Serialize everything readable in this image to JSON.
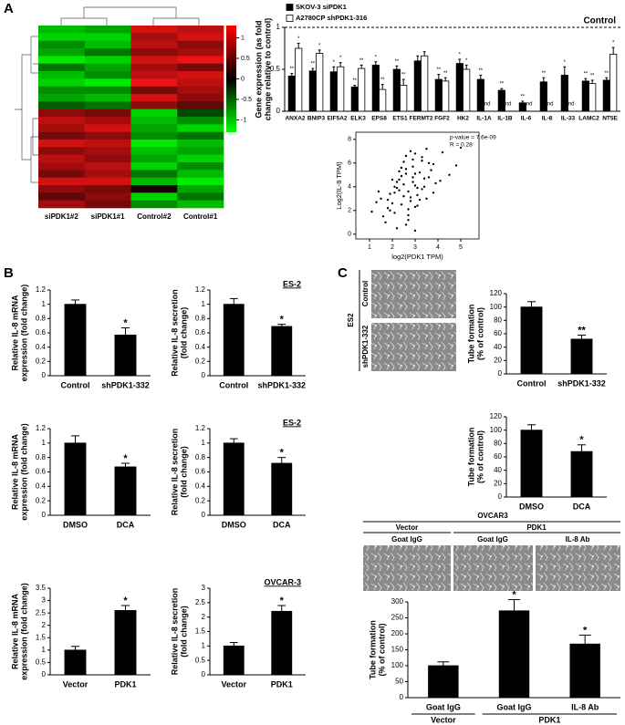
{
  "panel_labels": [
    "A",
    "B",
    "C"
  ],
  "photos": {
    "es2": {
      "group": "ES2",
      "rows": [
        "Control",
        "shPDK1-332"
      ]
    },
    "ovcar3": {
      "title": "OVCAR3",
      "groups": [
        "Vector",
        "PDK1"
      ],
      "columns": [
        "Goat IgG",
        "Goat IgG",
        "IL-8 Ab"
      ]
    }
  },
  "chart_data": [
    {
      "type": "heatmap",
      "columns": [
        "siPDK1#2",
        "siPDK1#1",
        "Control#2",
        "Control#1"
      ],
      "values": [
        [
          -0.8,
          -0.7,
          0.9,
          0.8
        ],
        [
          -0.9,
          -0.9,
          0.7,
          0.9
        ],
        [
          -0.6,
          -0.8,
          0.8,
          0.6
        ],
        [
          -0.7,
          -0.5,
          0.6,
          0.7
        ],
        [
          -1,
          -0.9,
          0.9,
          1
        ],
        [
          -0.5,
          -0.7,
          0.7,
          0.5
        ],
        [
          -0.8,
          -0.6,
          0.8,
          0.9
        ],
        [
          -0.9,
          -1,
          1,
          0.8
        ],
        [
          -0.6,
          -0.6,
          0.5,
          0.7
        ],
        [
          -0.7,
          -0.8,
          0.9,
          0.6
        ],
        [
          -0.4,
          -0.5,
          0.6,
          0.4
        ],
        [
          0.6,
          0.5,
          -0.9,
          -0.3
        ],
        [
          0.8,
          0.7,
          -0.8,
          -0.6
        ],
        [
          0.7,
          0.9,
          -0.7,
          -0.9
        ],
        [
          0.5,
          0.6,
          -0.6,
          -0.5
        ],
        [
          0.9,
          0.8,
          -1,
          -0.8
        ],
        [
          0.6,
          0.7,
          -0.8,
          -0.7
        ],
        [
          0.8,
          0.6,
          -0.7,
          -0.9
        ],
        [
          0.7,
          0.8,
          -0.9,
          -0.6
        ],
        [
          0.5,
          0.7,
          -0.5,
          -0.8
        ],
        [
          0.9,
          0.9,
          -0.8,
          -1
        ],
        [
          0.6,
          0.5,
          0.1,
          -0.7
        ],
        [
          0.4,
          0.6,
          -0.9,
          -0.5
        ],
        [
          0.7,
          0.5,
          -0.6,
          -0.8
        ]
      ],
      "zlim": [
        -1.3,
        1.3
      ],
      "zticks": [
        1,
        0.5,
        0,
        -0.5,
        -1
      ]
    },
    {
      "type": "bar",
      "ylabel": [
        "Gene expression (as fold",
        "change relative to control)"
      ],
      "categories": [
        "ANXA2",
        "BNIP3",
        "EIF5A2",
        "ELK3",
        "EPS8",
        "ETS1",
        "FERMT2",
        "FGF2",
        "HK2",
        "IL-1A",
        "IL-1B",
        "IL-6",
        "IL-8",
        "IL-33",
        "LAMC2",
        "NT5E"
      ],
      "series": [
        {
          "name": "SKOV-3 siPDK1",
          "color": "#000000",
          "values": [
            0.42,
            0.48,
            0.47,
            0.29,
            0.55,
            0.5,
            0.6,
            0.38,
            0.57,
            0.38,
            0.25,
            0.1,
            0.35,
            0.43,
            0.36,
            0.37
          ],
          "errors": [
            0.03,
            0.03,
            0.06,
            0.02,
            0.04,
            0.04,
            0.06,
            0.06,
            0.05,
            0.05,
            0.02,
            0.02,
            0.05,
            0.1,
            0.03,
            0.03
          ],
          "significance": [
            "**",
            "**",
            "*",
            "**",
            "*",
            "**",
            null,
            "**",
            "*",
            "**",
            "**",
            "**",
            "**",
            "*",
            "**",
            "**"
          ]
        },
        {
          "name": "A2780CP shPDK1-316",
          "color": "#ffffff",
          "values": [
            0.75,
            0.69,
            0.53,
            0.51,
            0.26,
            0.31,
            0.66,
            0.36,
            0.5,
            null,
            null,
            null,
            null,
            null,
            0.33,
            0.68
          ],
          "errors": [
            0.06,
            0.04,
            0.05,
            0.04,
            0.06,
            0.07,
            0.05,
            0.04,
            0.05,
            null,
            null,
            null,
            null,
            null,
            0.04,
            0.08
          ],
          "significance": [
            "*",
            "*",
            "*",
            "**",
            "**",
            "**",
            null,
            "**",
            "*",
            "nd",
            "nd",
            "nd",
            "nd",
            "nd",
            "**",
            "*"
          ]
        }
      ],
      "reference": {
        "value": 1,
        "label": "Control"
      },
      "ylim": [
        0,
        1
      ],
      "yticks": [
        0,
        0.5,
        1
      ]
    },
    {
      "type": "scatter",
      "xlabel": "log2(PDK1 TPM)",
      "ylabel": "Log2(IL-8 TPM)",
      "annotations": [
        "p-value = 7.6e-09",
        "R = 0.28"
      ],
      "x": [
        2.1,
        2.5,
        3.0,
        2.8,
        1.9,
        3.3,
        2.2,
        2.7,
        3.6,
        1.5,
        2.9,
        3.1,
        2.4,
        3.8,
        2.0,
        2.6,
        3.4,
        1.8,
        2.3,
        3.0,
        4.1,
        2.7,
        3.2,
        2.5,
        1.6,
        2.9,
        3.5,
        2.1,
        2.8,
        3.7,
        2.4,
        3.1,
        1.3,
        2.6,
        3.3,
        2.2,
        4.5,
        2.9,
        3.0,
        1.9,
        2.7,
        3.6,
        2.3,
        3.9,
        2.0,
        2.8,
        3.2,
        1.7,
        2.5,
        3.4,
        4.8,
        1.1,
        2.6,
        3.1,
        2.2,
        3.0,
        2.4,
        3.5,
        2.9,
        1.4,
        5.0,
        2.7,
        3.3,
        2.1,
        3.8,
        2.6,
        4.2,
        1.8,
        3.0,
        2.3
      ],
      "y": [
        3.5,
        4.2,
        5.1,
        2.8,
        2.0,
        6.5,
        3.9,
        1.2,
        4.8,
        3.0,
        5.7,
        3.3,
        2.5,
        5.9,
        4.6,
        0.8,
        4.0,
        2.2,
        5.3,
        6.8,
        4.5,
        3.6,
        2.9,
        6.1,
        1.5,
        4.4,
        7.2,
        1.8,
        3.1,
        5.4,
        4.9,
        2.4,
        2.7,
        5.5,
        3.8,
        0.5,
        5.0,
        6.3,
        4.1,
        3.4,
        2.1,
        6.0,
        3.7,
        4.3,
        2.6,
        7.0,
        5.2,
        1.0,
        3.2,
        4.7,
        5.8,
        1.9,
        6.6,
        3.9,
        4.4,
        2.3,
        5.6,
        3.0,
        4.8,
        3.6,
        7.3,
        1.6,
        6.2,
        4.0,
        3.5,
        5.1,
        6.9,
        2.9,
        0.3,
        4.6
      ],
      "xlim": [
        0.4,
        5.8
      ],
      "ylim": [
        -0.4,
        8.6
      ],
      "xticks": [
        1,
        2,
        3,
        4,
        5
      ],
      "yticks": [
        0,
        2,
        4,
        6,
        8
      ],
      "color": "#000000"
    },
    {
      "type": "bar",
      "ylabel": [
        "Relative IL-8 mRNA",
        "expression (fold change)"
      ],
      "categories": [
        "Control",
        "shPDK1-332"
      ],
      "values": [
        1,
        0.57
      ],
      "errors": [
        0.06,
        0.1
      ],
      "significance": [
        null,
        "*"
      ],
      "color": "#000000",
      "ylim": [
        0,
        1.2
      ],
      "yticks": [
        0,
        0.2,
        0.4,
        0.6,
        0.8,
        1,
        1.2
      ]
    },
    {
      "type": "bar",
      "title": "ES-2",
      "ylabel": [
        "Relative IL-8 secretion",
        "(fold change)"
      ],
      "categories": [
        "Control",
        "shPDK1-332"
      ],
      "values": [
        1,
        0.69
      ],
      "errors": [
        0.08,
        0.03
      ],
      "significance": [
        null,
        "*"
      ],
      "color": "#000000",
      "ylim": [
        0,
        1.2
      ],
      "yticks": [
        0,
        0.2,
        0.4,
        0.6,
        0.8,
        1,
        1.2
      ]
    },
    {
      "type": "bar",
      "ylabel": [
        "Relative IL-8 mRNA",
        "expression (fold change)"
      ],
      "categories": [
        "DMSO",
        "DCA"
      ],
      "values": [
        1,
        0.67
      ],
      "errors": [
        0.1,
        0.05
      ],
      "significance": [
        null,
        "*"
      ],
      "color": "#000000",
      "ylim": [
        0,
        1.2
      ],
      "yticks": [
        0,
        0.2,
        0.4,
        0.6,
        0.8,
        1,
        1.2
      ]
    },
    {
      "type": "bar",
      "title": "ES-2",
      "ylabel": [
        "Relative IL-8 secretion",
        "(fold change)"
      ],
      "categories": [
        "DMSO",
        "DCA"
      ],
      "values": [
        1,
        0.72
      ],
      "errors": [
        0.06,
        0.08
      ],
      "significance": [
        null,
        "*"
      ],
      "color": "#000000",
      "ylim": [
        0,
        1.2
      ],
      "yticks": [
        0,
        0.2,
        0.4,
        0.6,
        0.8,
        1,
        1.2
      ]
    },
    {
      "type": "bar",
      "ylabel": [
        "Relative IL-8 mRNA",
        "expression (fold change)"
      ],
      "categories": [
        "Vector",
        "PDK1"
      ],
      "values": [
        1,
        2.6
      ],
      "errors": [
        0.15,
        0.2
      ],
      "significance": [
        null,
        "*"
      ],
      "color": "#000000",
      "ylim": [
        0,
        3.5
      ],
      "yticks": [
        0,
        0.5,
        1,
        1.5,
        2,
        2.5,
        3,
        3.5
      ]
    },
    {
      "type": "bar",
      "title": "OVCAR-3",
      "ylabel": [
        "Relative IL-8 secretion",
        "(fold change)"
      ],
      "categories": [
        "Vector",
        "PDK1"
      ],
      "values": [
        1,
        2.2
      ],
      "errors": [
        0.12,
        0.2
      ],
      "significance": [
        null,
        "*"
      ],
      "color": "#000000",
      "ylim": [
        0,
        3
      ],
      "yticks": [
        0,
        0.5,
        1,
        1.5,
        2,
        2.5,
        3
      ]
    },
    {
      "type": "bar",
      "ylabel": [
        "Tube formation",
        "(% of control)"
      ],
      "categories": [
        "Control",
        "shPDK1-332"
      ],
      "values": [
        100,
        52
      ],
      "errors": [
        8,
        6
      ],
      "significance": [
        null,
        "**"
      ],
      "color": "#000000",
      "ylim": [
        0,
        120
      ],
      "yticks": [
        0,
        20,
        40,
        60,
        80,
        100,
        120
      ]
    },
    {
      "type": "bar",
      "ylabel": [
        "Tube formation",
        "(% of control)"
      ],
      "categories": [
        "DMSO",
        "DCA"
      ],
      "values": [
        100,
        68
      ],
      "errors": [
        8,
        10
      ],
      "significance": [
        null,
        "*"
      ],
      "color": "#000000",
      "ylim": [
        0,
        120
      ],
      "yticks": [
        0,
        20,
        40,
        60,
        80,
        100,
        120
      ]
    },
    {
      "type": "bar",
      "ylabel": [
        "Tube formation",
        "(% of control)"
      ],
      "categories": [
        "Goat IgG",
        "Goat IgG",
        "IL-8 Ab"
      ],
      "group_labels": [
        "Vector",
        "PDK1"
      ],
      "values": [
        100,
        272,
        168
      ],
      "errors": [
        12,
        35,
        28
      ],
      "significance": [
        null,
        "*",
        "*"
      ],
      "color": "#000000",
      "ylim": [
        0,
        300
      ],
      "yticks": [
        0,
        50,
        100,
        150,
        200,
        250,
        300
      ]
    }
  ]
}
